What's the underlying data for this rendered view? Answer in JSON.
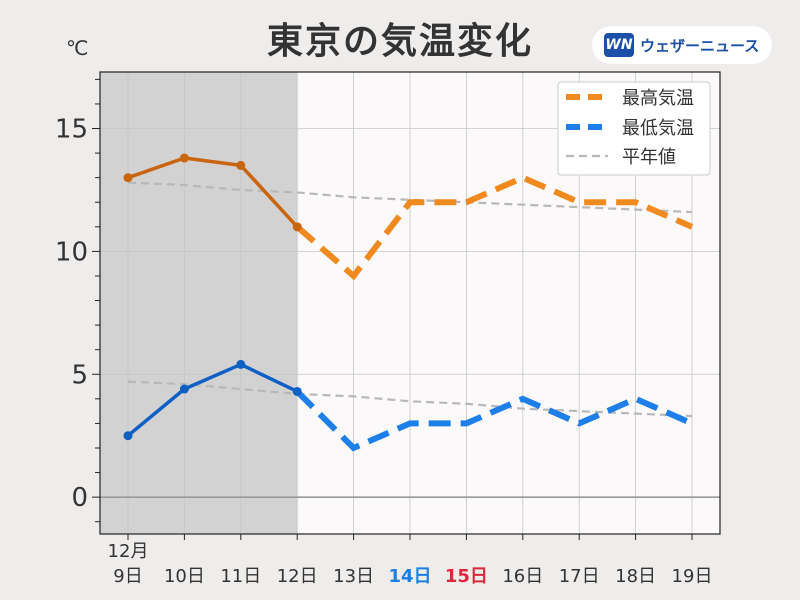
{
  "title": "東京の気温変化",
  "unit": "℃",
  "logo": {
    "mark": "WN",
    "text": "ウェザーニュース"
  },
  "chart_data": {
    "type": "line",
    "month_label": "12月",
    "categories": [
      "9日",
      "10日",
      "11日",
      "12日",
      "13日",
      "14日",
      "15日",
      "16日",
      "17日",
      "18日",
      "19日"
    ],
    "category_colors": [
      "#333333",
      "#333333",
      "#333333",
      "#333333",
      "#333333",
      "#1a7fe0",
      "#e0263c",
      "#333333",
      "#333333",
      "#333333",
      "#333333"
    ],
    "ylim": [
      -1.5,
      17.3
    ],
    "yticks": [
      0,
      5,
      10,
      15
    ],
    "observed_until": "12日",
    "series": [
      {
        "name": "最高気温",
        "values": [
          13,
          13.8,
          13.5,
          11,
          9,
          12,
          12,
          13,
          12,
          12,
          11
        ],
        "color": "#f08a1e",
        "observed_color": "#c9650e"
      },
      {
        "name": "最低気温",
        "values": [
          2.5,
          4.4,
          5.4,
          4.3,
          2,
          3,
          3,
          4,
          3,
          4,
          3
        ],
        "color": "#1e7fe8",
        "observed_color": "#0f5fc4"
      },
      {
        "name": "平年値",
        "values": [
          12.8,
          12.7,
          12.5,
          12.4,
          12.2,
          12.1,
          12.0,
          11.9,
          11.8,
          11.7,
          11.6
        ],
        "color": "#b8b8b8"
      },
      {
        "name": "",
        "values": [
          4.7,
          4.6,
          4.4,
          4.2,
          4.1,
          3.9,
          3.8,
          3.6,
          3.5,
          3.4,
          3.3
        ],
        "color": "#b8b8b8"
      }
    ],
    "legend_position": "top-right",
    "grid": true
  }
}
